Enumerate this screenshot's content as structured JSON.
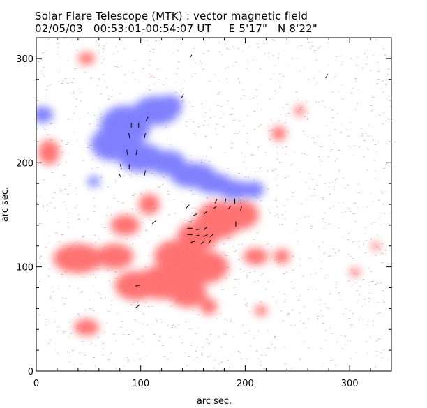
{
  "header": {
    "title": "Solar Flare Telescope (MTK) : vector magnetic field",
    "subtitle": "02/05/03   00:53:01-00:54:07 UT     E 5'17\"   N 8'22\""
  },
  "chart_data": {
    "type": "heatmap",
    "title": "Solar Flare Telescope (MTK) : vector magnetic field",
    "subtitle": "02/05/03   00:53:01-00:54:07 UT     E 5'17\"   N 8'22\"",
    "xlabel": "arc sec.",
    "ylabel": "arc sec.",
    "xlim": [
      0,
      340
    ],
    "ylim": [
      0,
      320
    ],
    "xticks": [
      0,
      100,
      200,
      300
    ],
    "yticks": [
      0,
      100,
      200,
      300
    ],
    "grid": false,
    "colors": {
      "positive": "#ff5a5a",
      "negative": "#6a6aff",
      "vector": "#000000",
      "frame": "#000000"
    },
    "regions": {
      "negative": [
        {
          "x": 85,
          "y": 235,
          "rx": 24,
          "ry": 20
        },
        {
          "x": 115,
          "y": 250,
          "rx": 22,
          "ry": 14
        },
        {
          "x": 128,
          "y": 255,
          "rx": 12,
          "ry": 10
        },
        {
          "x": 72,
          "y": 218,
          "rx": 20,
          "ry": 16
        },
        {
          "x": 100,
          "y": 205,
          "rx": 22,
          "ry": 14
        },
        {
          "x": 125,
          "y": 200,
          "rx": 18,
          "ry": 12
        },
        {
          "x": 150,
          "y": 188,
          "rx": 22,
          "ry": 12
        },
        {
          "x": 170,
          "y": 180,
          "rx": 18,
          "ry": 10
        },
        {
          "x": 190,
          "y": 174,
          "rx": 16,
          "ry": 9
        },
        {
          "x": 208,
          "y": 174,
          "rx": 10,
          "ry": 8
        },
        {
          "x": 6,
          "y": 246,
          "rx": 10,
          "ry": 8
        },
        {
          "x": 55,
          "y": 182,
          "rx": 6,
          "ry": 5
        }
      ],
      "positive": [
        {
          "x": 175,
          "y": 145,
          "rx": 22,
          "ry": 18
        },
        {
          "x": 195,
          "y": 150,
          "rx": 18,
          "ry": 14
        },
        {
          "x": 155,
          "y": 130,
          "rx": 20,
          "ry": 14
        },
        {
          "x": 135,
          "y": 110,
          "rx": 22,
          "ry": 16
        },
        {
          "x": 160,
          "y": 100,
          "rx": 24,
          "ry": 16
        },
        {
          "x": 120,
          "y": 85,
          "rx": 24,
          "ry": 16
        },
        {
          "x": 95,
          "y": 82,
          "rx": 20,
          "ry": 14
        },
        {
          "x": 145,
          "y": 75,
          "rx": 18,
          "ry": 14
        },
        {
          "x": 165,
          "y": 62,
          "rx": 8,
          "ry": 8
        },
        {
          "x": 40,
          "y": 108,
          "rx": 24,
          "ry": 14
        },
        {
          "x": 75,
          "y": 110,
          "rx": 18,
          "ry": 12
        },
        {
          "x": 108,
          "y": 160,
          "rx": 10,
          "ry": 10
        },
        {
          "x": 85,
          "y": 140,
          "rx": 14,
          "ry": 10
        },
        {
          "x": 210,
          "y": 110,
          "rx": 12,
          "ry": 8
        },
        {
          "x": 235,
          "y": 110,
          "rx": 8,
          "ry": 7
        },
        {
          "x": 12,
          "y": 210,
          "rx": 10,
          "ry": 12
        },
        {
          "x": 48,
          "y": 42,
          "rx": 12,
          "ry": 8
        },
        {
          "x": 215,
          "y": 58,
          "rx": 6,
          "ry": 5
        },
        {
          "x": 48,
          "y": 300,
          "rx": 8,
          "ry": 6
        },
        {
          "x": 232,
          "y": 228,
          "rx": 7,
          "ry": 7
        },
        {
          "x": 252,
          "y": 250,
          "rx": 5,
          "ry": 5
        },
        {
          "x": 325,
          "y": 120,
          "rx": 4,
          "ry": 4
        },
        {
          "x": 305,
          "y": 95,
          "rx": 5,
          "ry": 4
        }
      ]
    },
    "vectors": [
      {
        "x": 148,
        "y": 302,
        "dx": 2,
        "dy": 3
      },
      {
        "x": 278,
        "y": 283,
        "dx": 2,
        "dy": 4
      },
      {
        "x": 140,
        "y": 264,
        "dx": 2,
        "dy": 4
      },
      {
        "x": 106,
        "y": 242,
        "dx": 2,
        "dy": 4
      },
      {
        "x": 91,
        "y": 236,
        "dx": 0,
        "dy": 5
      },
      {
        "x": 98,
        "y": 236,
        "dx": 0,
        "dy": 5
      },
      {
        "x": 89,
        "y": 226,
        "dx": -1,
        "dy": 5
      },
      {
        "x": 104,
        "y": 226,
        "dx": 1,
        "dy": 5
      },
      {
        "x": 87,
        "y": 210,
        "dx": -1,
        "dy": 5
      },
      {
        "x": 96,
        "y": 210,
        "dx": 1,
        "dy": 5
      },
      {
        "x": 89,
        "y": 196,
        "dx": 0,
        "dy": 5
      },
      {
        "x": 81,
        "y": 196,
        "dx": -1,
        "dy": 5
      },
      {
        "x": 104,
        "y": 190,
        "dx": 1,
        "dy": 5
      },
      {
        "x": 80,
        "y": 188,
        "dx": -2,
        "dy": 4
      },
      {
        "x": 145,
        "y": 158,
        "dx": 3,
        "dy": 3
      },
      {
        "x": 172,
        "y": 163,
        "dx": 2,
        "dy": 4
      },
      {
        "x": 181,
        "y": 163,
        "dx": 1,
        "dy": 5
      },
      {
        "x": 190,
        "y": 163,
        "dx": 0,
        "dy": 5
      },
      {
        "x": 196,
        "y": 163,
        "dx": 0,
        "dy": 5
      },
      {
        "x": 171,
        "y": 157,
        "dx": 3,
        "dy": 2
      },
      {
        "x": 185,
        "y": 157,
        "dx": 2,
        "dy": 3
      },
      {
        "x": 196,
        "y": 156,
        "dx": 1,
        "dy": 4
      },
      {
        "x": 152,
        "y": 150,
        "dx": 4,
        "dy": 2
      },
      {
        "x": 162,
        "y": 152,
        "dx": 3,
        "dy": 3
      },
      {
        "x": 113,
        "y": 143,
        "dx": 4,
        "dy": 3
      },
      {
        "x": 191,
        "y": 141,
        "dx": 0,
        "dy": 5
      },
      {
        "x": 147,
        "y": 143,
        "dx": 4,
        "dy": 0
      },
      {
        "x": 147,
        "y": 137,
        "dx": 5,
        "dy": 0
      },
      {
        "x": 155,
        "y": 136,
        "dx": 4,
        "dy": 1
      },
      {
        "x": 162,
        "y": 137,
        "dx": 3,
        "dy": 3
      },
      {
        "x": 147,
        "y": 131,
        "dx": 5,
        "dy": 0
      },
      {
        "x": 154,
        "y": 130,
        "dx": 4,
        "dy": 1
      },
      {
        "x": 162,
        "y": 130,
        "dx": 4,
        "dy": 2
      },
      {
        "x": 168,
        "y": 130,
        "dx": 3,
        "dy": 3
      },
      {
        "x": 150,
        "y": 124,
        "dx": 4,
        "dy": 1
      },
      {
        "x": 159,
        "y": 123,
        "dx": 3,
        "dy": 2
      },
      {
        "x": 166,
        "y": 124,
        "dx": 2,
        "dy": 4
      },
      {
        "x": 97,
        "y": 82,
        "dx": 4,
        "dy": 1
      },
      {
        "x": 97,
        "y": 62,
        "dx": 4,
        "dy": 3
      }
    ]
  }
}
